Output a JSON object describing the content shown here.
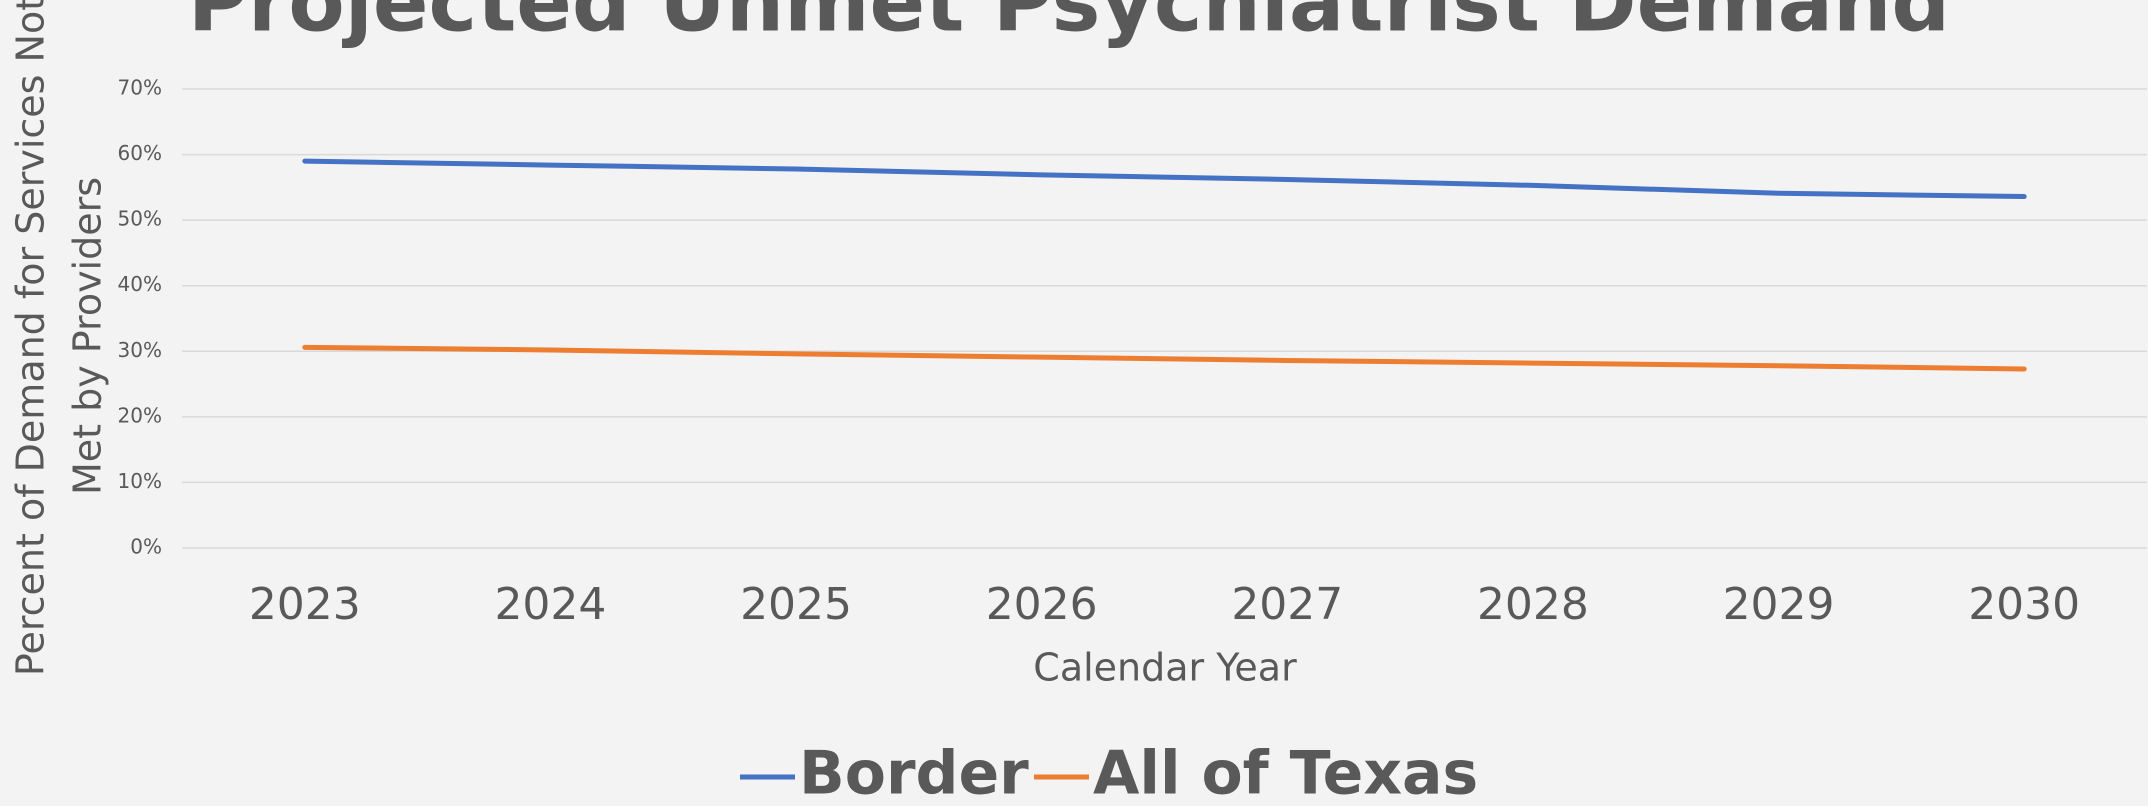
{
  "chart_data": {
    "type": "line",
    "title": "Projected Unmet Psychiatrist Demand",
    "xlabel": "Calendar Year",
    "ylabel": [
      "Percent of Demand for Services Not",
      "Met by Providers"
    ],
    "categories": [
      "2023",
      "2024",
      "2025",
      "2026",
      "2027",
      "2028",
      "2029",
      "2030"
    ],
    "series": [
      {
        "name": "Border",
        "color": "#4472c4",
        "values": [
          59,
          58.4,
          57.8,
          56.9,
          56.2,
          55.3,
          54.1,
          53.6
        ]
      },
      {
        "name": "All of Texas",
        "color": "#ed7d31",
        "values": [
          30.6,
          30.2,
          29.6,
          29.1,
          28.6,
          28.2,
          27.8,
          27.3
        ]
      }
    ],
    "ylim": [
      0,
      70
    ],
    "yticks": [
      {
        "value": 0,
        "label": "0%"
      },
      {
        "value": 10,
        "label": "10%"
      },
      {
        "value": 20,
        "label": "20%"
      },
      {
        "value": 30,
        "label": "30%"
      },
      {
        "value": 40,
        "label": "40%"
      },
      {
        "value": 50,
        "label": "50%"
      },
      {
        "value": 60,
        "label": "60%"
      },
      {
        "value": 70,
        "label": "70%"
      }
    ],
    "grid": true,
    "legend": "bottom"
  }
}
